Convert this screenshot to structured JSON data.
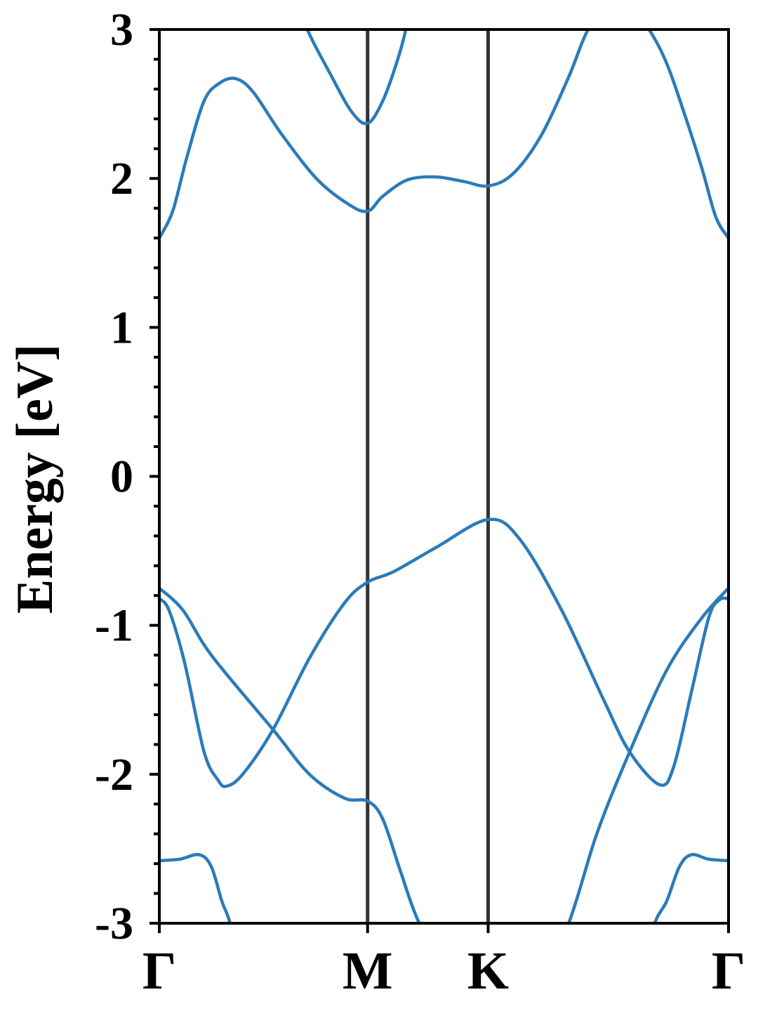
{
  "chart_data": {
    "type": "line",
    "title": "",
    "xlabel": "",
    "ylabel": "Energy [eV]",
    "ylim": [
      -3,
      3
    ],
    "xlim": [
      0,
      1.577
    ],
    "yticks": [
      -3,
      -2,
      -1,
      0,
      1,
      2,
      3
    ],
    "ytick_labels": [
      "-3",
      "-2",
      "-1",
      "0",
      "1",
      "2",
      "3"
    ],
    "y_minor_step": 0.2,
    "high_symmetry_points": [
      {
        "label": "Γ",
        "k": 0
      },
      {
        "label": "M",
        "k": 0.577
      },
      {
        "label": "K",
        "k": 0.911
      },
      {
        "label": "Γ",
        "k": 1.577
      }
    ],
    "grid": false,
    "colors": {
      "band": "#2b7bba",
      "kpoint_line": "#333333",
      "axis": "#000000"
    },
    "series": [
      {
        "points": [
          [
            0,
            1.6
          ],
          [
            0.037,
            1.78
          ],
          [
            0.076,
            2.14
          ],
          [
            0.124,
            2.52
          ],
          [
            0.167,
            2.64
          ],
          [
            0.212,
            2.67
          ],
          [
            0.26,
            2.58
          ],
          [
            0.338,
            2.3
          ],
          [
            0.435,
            2.0
          ],
          [
            0.522,
            1.83
          ],
          [
            0.577,
            1.78
          ],
          [
            0.619,
            1.88
          ],
          [
            0.687,
            1.99
          ],
          [
            0.765,
            2.01
          ],
          [
            0.843,
            1.98
          ],
          [
            0.911,
            1.95
          ],
          [
            0.979,
            2.03
          ],
          [
            1.056,
            2.28
          ],
          [
            1.134,
            2.68
          ],
          [
            1.188,
            3.0
          ],
          [
            1.27,
            3.3
          ],
          [
            1.357,
            3.0
          ],
          [
            1.406,
            2.77
          ],
          [
            1.454,
            2.44
          ],
          [
            1.503,
            2.07
          ],
          [
            1.542,
            1.74
          ],
          [
            1.577,
            1.6
          ]
        ]
      },
      {
        "points": [
          [
            0.377,
            3.25
          ],
          [
            0.41,
            3.0
          ],
          [
            0.474,
            2.7
          ],
          [
            0.532,
            2.45
          ],
          [
            0.577,
            2.37
          ],
          [
            0.619,
            2.52
          ],
          [
            0.658,
            2.78
          ],
          [
            0.683,
            3.0
          ],
          [
            0.707,
            3.3
          ]
        ]
      },
      {
        "points": [
          [
            0,
            -0.82
          ],
          [
            0.027,
            -0.9
          ],
          [
            0.07,
            -1.25
          ],
          [
            0.124,
            -1.85
          ],
          [
            0.163,
            -2.04
          ],
          [
            0.186,
            -2.08
          ],
          [
            0.231,
            -2.0
          ],
          [
            0.315,
            -1.7
          ],
          [
            0.416,
            -1.22
          ],
          [
            0.513,
            -0.85
          ],
          [
            0.577,
            -0.71
          ],
          [
            0.649,
            -0.64
          ],
          [
            0.765,
            -0.48
          ],
          [
            0.911,
            -0.29
          ],
          [
            0.998,
            -0.42
          ],
          [
            1.115,
            -0.9
          ],
          [
            1.231,
            -1.5
          ],
          [
            1.303,
            -1.85
          ],
          [
            1.386,
            -2.07
          ],
          [
            1.425,
            -1.95
          ],
          [
            1.474,
            -1.45
          ],
          [
            1.522,
            -0.95
          ],
          [
            1.551,
            -0.83
          ],
          [
            1.577,
            -0.82
          ]
        ]
      },
      {
        "points": [
          [
            0,
            -0.75
          ],
          [
            0.066,
            -0.9
          ],
          [
            0.144,
            -1.2
          ],
          [
            0.315,
            -1.7
          ],
          [
            0.416,
            -2.0
          ],
          [
            0.513,
            -2.16
          ],
          [
            0.577,
            -2.18
          ],
          [
            0.619,
            -2.3
          ],
          [
            0.668,
            -2.65
          ],
          [
            0.72,
            -3.0
          ],
          [
            0.823,
            -3.5
          ],
          [
            1.037,
            -3.5
          ],
          [
            1.134,
            -3.0
          ],
          [
            1.212,
            -2.4
          ],
          [
            1.303,
            -1.85
          ],
          [
            1.406,
            -1.3
          ],
          [
            1.503,
            -0.95
          ],
          [
            1.577,
            -0.75
          ]
        ]
      },
      {
        "points": [
          [
            0,
            -2.58
          ],
          [
            0.056,
            -2.57
          ],
          [
            0.111,
            -2.54
          ],
          [
            0.144,
            -2.62
          ],
          [
            0.173,
            -2.85
          ],
          [
            0.196,
            -3.0
          ],
          [
            0.221,
            -3.3
          ]
        ]
      },
      {
        "points": [
          [
            1.348,
            -3.3
          ],
          [
            1.373,
            -3.0
          ],
          [
            1.406,
            -2.85
          ],
          [
            1.441,
            -2.62
          ],
          [
            1.474,
            -2.54
          ],
          [
            1.522,
            -2.57
          ],
          [
            1.577,
            -2.58
          ]
        ]
      }
    ]
  }
}
